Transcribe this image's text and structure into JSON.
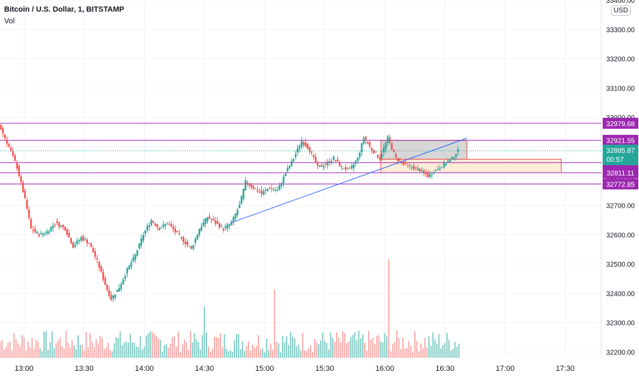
{
  "header": {
    "symbol_title": "Bitcoin / U.S. Dollar, 1, BITSTAMP",
    "volume_label": "Vol",
    "currency_badge": "USD"
  },
  "colors": {
    "up": "#26a69a",
    "down": "#ef5350",
    "up_volume": "#80cbc4",
    "down_volume": "#f7a9a7",
    "level_line": "#9c27b0",
    "trendline": "#2962ff",
    "grid": "#f0f3fa",
    "text": "#131722"
  },
  "chart_data": {
    "type": "candlestick",
    "title": "Bitcoin / U.S. Dollar, 1, BITSTAMP",
    "interval": "1 minute",
    "grid": true,
    "legend_position": "top-left",
    "ylim": [
      32180,
      33400
    ],
    "xlim": [
      "12:48",
      "17:48"
    ],
    "x_ticks": [
      "13:00",
      "13:30",
      "14:00",
      "14:30",
      "15:00",
      "15:30",
      "16:00",
      "16:30",
      "17:00",
      "17:30"
    ],
    "y_ticks": [
      "33400.00",
      "33300.00",
      "33200.00",
      "33100.00",
      "33000.00",
      "32900.00",
      "32800.00",
      "32700.00",
      "32600.00",
      "32500.00",
      "32400.00",
      "32300.00",
      "32200.00"
    ],
    "current_price": {
      "label": "32885.87",
      "countdown": "00:57",
      "value": 32885.87
    },
    "horizontal_levels": [
      {
        "label": "32979.68",
        "value": 32979.68
      },
      {
        "label": "32921.55",
        "value": 32921.55
      },
      {
        "label": "32845.60",
        "value": 32845.6
      },
      {
        "label": "32811.11",
        "value": 32811.11
      },
      {
        "label": "32772.85",
        "value": 32772.85
      }
    ],
    "level_bands": [
      {
        "name": "resistance-zone",
        "x_from": "15:58",
        "x_to": "16:41",
        "y_from": 32921.55,
        "y_to": 32857,
        "fill": "#c9c9c9",
        "stroke": "#ef5350"
      },
      {
        "name": "support-zone",
        "x_from": "15:58",
        "x_to": "17:28",
        "y_from": 32857,
        "y_to": 32811.11,
        "fill": "#fde6cc",
        "stroke": "#ef5350"
      }
    ],
    "trendline": {
      "from": {
        "x": "14:43",
        "y": 32640
      },
      "to": {
        "x": "16:41",
        "y": 32929
      }
    },
    "price_series": [
      {
        "t": "12:48",
        "v": 32975
      },
      {
        "t": "12:53",
        "v": 32900
      },
      {
        "t": "12:57",
        "v": 32830
      },
      {
        "t": "13:01",
        "v": 32720
      },
      {
        "t": "13:04",
        "v": 32620
      },
      {
        "t": "13:08",
        "v": 32600
      },
      {
        "t": "13:12",
        "v": 32610
      },
      {
        "t": "13:16",
        "v": 32640
      },
      {
        "t": "13:21",
        "v": 32620
      },
      {
        "t": "13:25",
        "v": 32560
      },
      {
        "t": "13:29",
        "v": 32590
      },
      {
        "t": "13:33",
        "v": 32570
      },
      {
        "t": "13:37",
        "v": 32510
      },
      {
        "t": "13:41",
        "v": 32430
      },
      {
        "t": "13:44",
        "v": 32380
      },
      {
        "t": "13:48",
        "v": 32420
      },
      {
        "t": "13:52",
        "v": 32480
      },
      {
        "t": "13:56",
        "v": 32530
      },
      {
        "t": "14:00",
        "v": 32600
      },
      {
        "t": "14:04",
        "v": 32650
      },
      {
        "t": "14:08",
        "v": 32620
      },
      {
        "t": "14:12",
        "v": 32640
      },
      {
        "t": "14:16",
        "v": 32610
      },
      {
        "t": "14:20",
        "v": 32580
      },
      {
        "t": "14:24",
        "v": 32550
      },
      {
        "t": "14:28",
        "v": 32620
      },
      {
        "t": "14:32",
        "v": 32660
      },
      {
        "t": "14:36",
        "v": 32640
      },
      {
        "t": "14:40",
        "v": 32620
      },
      {
        "t": "14:44",
        "v": 32640
      },
      {
        "t": "14:48",
        "v": 32700
      },
      {
        "t": "14:51",
        "v": 32780
      },
      {
        "t": "14:55",
        "v": 32760
      },
      {
        "t": "14:59",
        "v": 32740
      },
      {
        "t": "15:03",
        "v": 32760
      },
      {
        "t": "15:07",
        "v": 32750
      },
      {
        "t": "15:11",
        "v": 32810
      },
      {
        "t": "15:15",
        "v": 32860
      },
      {
        "t": "15:19",
        "v": 32920
      },
      {
        "t": "15:23",
        "v": 32890
      },
      {
        "t": "15:27",
        "v": 32830
      },
      {
        "t": "15:31",
        "v": 32840
      },
      {
        "t": "15:35",
        "v": 32860
      },
      {
        "t": "15:39",
        "v": 32830
      },
      {
        "t": "15:43",
        "v": 32820
      },
      {
        "t": "15:47",
        "v": 32860
      },
      {
        "t": "15:50",
        "v": 32930
      },
      {
        "t": "15:54",
        "v": 32890
      },
      {
        "t": "15:58",
        "v": 32860
      },
      {
        "t": "16:02",
        "v": 32930
      },
      {
        "t": "16:06",
        "v": 32860
      },
      {
        "t": "16:10",
        "v": 32840
      },
      {
        "t": "16:14",
        "v": 32830
      },
      {
        "t": "16:18",
        "v": 32820
      },
      {
        "t": "16:22",
        "v": 32800
      },
      {
        "t": "16:26",
        "v": 32820
      },
      {
        "t": "16:30",
        "v": 32840
      },
      {
        "t": "16:34",
        "v": 32860
      },
      {
        "t": "16:37",
        "v": 32885.87
      }
    ],
    "volume_spikes": [
      {
        "t": "14:30",
        "v": 0.74
      },
      {
        "t": "15:05",
        "v": 1.0
      },
      {
        "t": "16:02",
        "v": 1.44
      }
    ]
  }
}
